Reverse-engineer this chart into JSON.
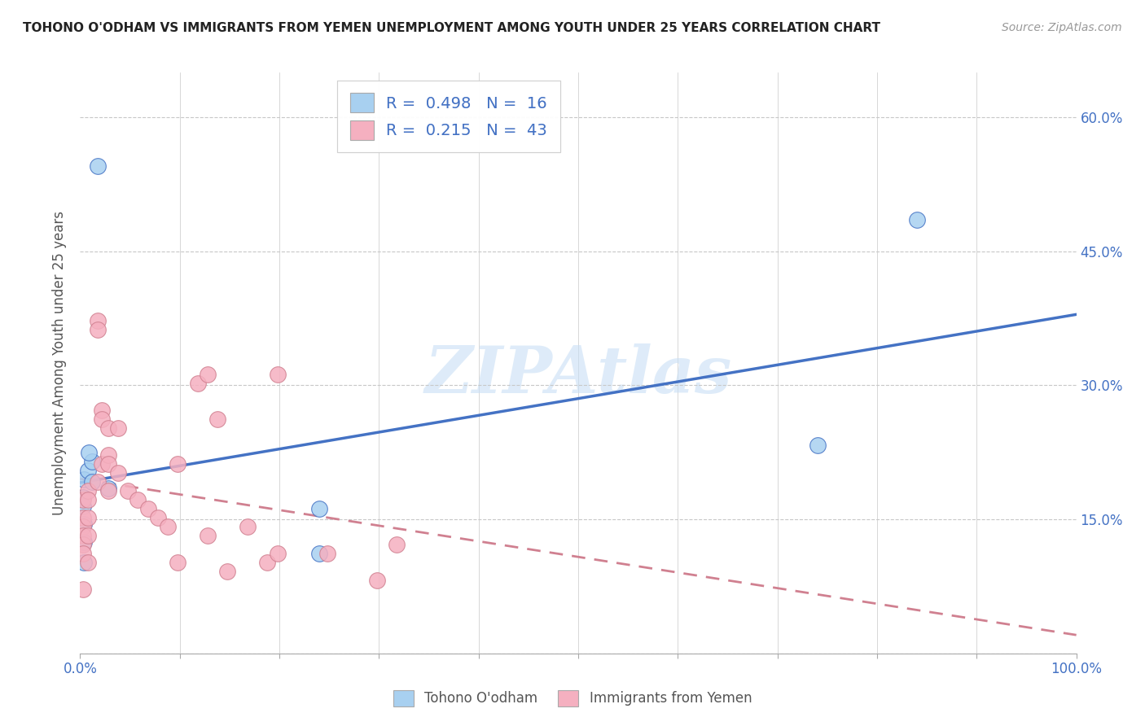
{
  "title": "TOHONO O'ODHAM VS IMMIGRANTS FROM YEMEN UNEMPLOYMENT AMONG YOUTH UNDER 25 YEARS CORRELATION CHART",
  "source": "Source: ZipAtlas.com",
  "ylabel": "Unemployment Among Youth under 25 years",
  "legend_label_1": "Tohono O'odham",
  "legend_label_2": "Immigrants from Yemen",
  "R1": 0.498,
  "N1": 16,
  "R2": 0.215,
  "N2": 43,
  "color1": "#a8d0f0",
  "color2": "#f5b0c0",
  "line1_color": "#4472c4",
  "line2_color": "#d08090",
  "background_color": "#ffffff",
  "grid_color": "#c8c8c8",
  "watermark": "ZIPAtlas",
  "xlim": [
    0,
    1.0
  ],
  "ylim": [
    0,
    0.65
  ],
  "xticks": [
    0,
    0.1,
    0.2,
    0.3,
    0.4,
    0.5,
    0.6,
    0.7,
    0.8,
    0.9,
    1.0
  ],
  "yticks": [
    0,
    0.15,
    0.3,
    0.45,
    0.6
  ],
  "xticklabels_show": [
    "0.0%",
    "",
    "",
    "",
    "",
    "",
    "",
    "",
    "",
    "",
    "100.0%"
  ],
  "yticklabels_right": [
    "",
    "15.0%",
    "30.0%",
    "45.0%",
    "60.0%"
  ],
  "tohono_x": [
    0.018,
    0.004,
    0.008,
    0.003,
    0.003,
    0.012,
    0.012,
    0.009,
    0.004,
    0.004,
    0.028,
    0.24,
    0.24,
    0.74,
    0.84,
    0.004
  ],
  "tohono_y": [
    0.545,
    0.195,
    0.205,
    0.175,
    0.165,
    0.215,
    0.192,
    0.225,
    0.145,
    0.125,
    0.185,
    0.162,
    0.112,
    0.233,
    0.485,
    0.102
  ],
  "yemen_x": [
    0.003,
    0.003,
    0.003,
    0.003,
    0.003,
    0.003,
    0.003,
    0.008,
    0.008,
    0.008,
    0.008,
    0.008,
    0.018,
    0.018,
    0.018,
    0.022,
    0.022,
    0.022,
    0.028,
    0.028,
    0.028,
    0.028,
    0.038,
    0.038,
    0.048,
    0.058,
    0.068,
    0.078,
    0.088,
    0.098,
    0.098,
    0.118,
    0.128,
    0.128,
    0.138,
    0.148,
    0.168,
    0.188,
    0.198,
    0.198,
    0.248,
    0.298,
    0.318
  ],
  "yemen_y": [
    0.172,
    0.152,
    0.142,
    0.132,
    0.122,
    0.112,
    0.072,
    0.182,
    0.172,
    0.152,
    0.132,
    0.102,
    0.372,
    0.362,
    0.192,
    0.272,
    0.262,
    0.212,
    0.252,
    0.222,
    0.212,
    0.182,
    0.252,
    0.202,
    0.182,
    0.172,
    0.162,
    0.152,
    0.142,
    0.212,
    0.102,
    0.302,
    0.312,
    0.132,
    0.262,
    0.092,
    0.142,
    0.102,
    0.312,
    0.112,
    0.112,
    0.082,
    0.122
  ]
}
